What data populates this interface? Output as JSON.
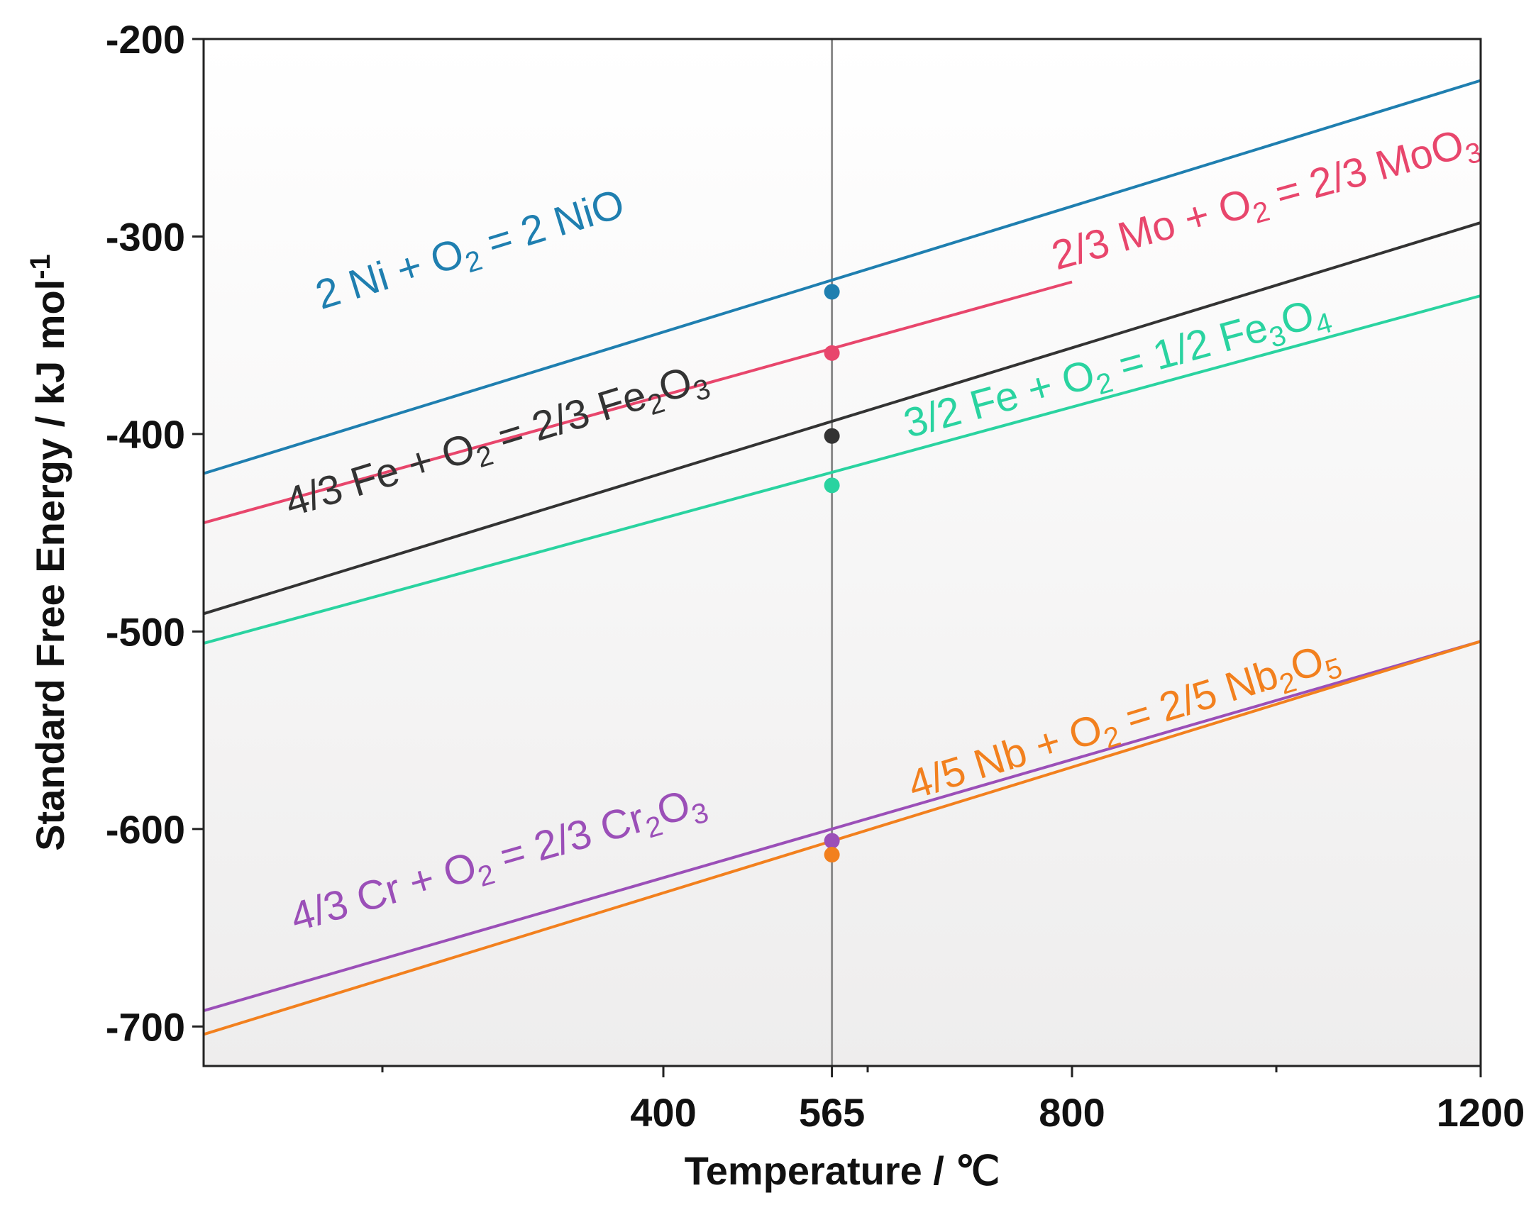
{
  "chart_data": {
    "type": "line",
    "title": "",
    "xlabel": "Temperature / ℃",
    "ylabel": "Standard Free Energy / kJ mol",
    "ylabel_superscript": "-1",
    "xlim": [
      -50,
      1200
    ],
    "ylim": [
      -720,
      -200
    ],
    "x_ticks": [
      400,
      565,
      800,
      1200
    ],
    "x_minor_ticks": [
      125,
      600,
      1000
    ],
    "y_ticks": [
      -200,
      -300,
      -400,
      -500,
      -600,
      -700
    ],
    "reference_line_x": 565,
    "series": [
      {
        "name": "2 Ni + O2 = 2 NiO",
        "color": "#1f7fb0",
        "x": [
          -50,
          1200
        ],
        "y": [
          -420,
          -221
        ],
        "marker": {
          "x": 565,
          "y": -328
        },
        "label": [
          {
            "t": "2 Ni + O"
          },
          {
            "t": "2",
            "sub": true
          },
          {
            "t": " = 2 NiO"
          }
        ],
        "label_anchor": {
          "x": 65,
          "y": -337
        }
      },
      {
        "name": "2/3 Mo + O2 = 2/3 MoO3",
        "color": "#e8466c",
        "x": [
          -50,
          800
        ],
        "y": [
          -445,
          -323
        ],
        "marker": {
          "x": 565,
          "y": -359
        },
        "label": [
          {
            "t": "2/3 Mo + O"
          },
          {
            "t": "2",
            "sub": true
          },
          {
            "t": " = 2/3 MoO"
          },
          {
            "t": "3",
            "sub": true
          }
        ],
        "label_anchor": {
          "x": 785,
          "y": -317
        }
      },
      {
        "name": "4/3 Fe + O2 = 2/3 Fe2O3",
        "color": "#333333",
        "x": [
          -50,
          1200
        ],
        "y": [
          -491,
          -293
        ],
        "marker": {
          "x": 565,
          "y": -401
        },
        "label": [
          {
            "t": "4/3 Fe + O"
          },
          {
            "t": "2",
            "sub": true
          },
          {
            "t": " = 2/3 Fe"
          },
          {
            "t": "2",
            "sub": true
          },
          {
            "t": "O"
          },
          {
            "t": "3",
            "sub": true
          }
        ],
        "label_anchor": {
          "x": 35,
          "y": -442
        }
      },
      {
        "name": "3/2 Fe + O2 = 1/2 Fe3O4",
        "color": "#2ad3a0",
        "x": [
          -50,
          1200
        ],
        "y": [
          -506,
          -330
        ],
        "marker": {
          "x": 565,
          "y": -426
        },
        "label": [
          {
            "t": "3/2 Fe + O"
          },
          {
            "t": "2",
            "sub": true
          },
          {
            "t": " = 1/2 Fe"
          },
          {
            "t": "3",
            "sub": true
          },
          {
            "t": "O"
          },
          {
            "t": "4",
            "sub": true
          }
        ],
        "label_anchor": {
          "x": 640,
          "y": -402
        }
      },
      {
        "name": "4/3 Cr + O2 = 2/3 Cr2O3",
        "color": "#9b4fb8",
        "x": [
          -50,
          1200
        ],
        "y": [
          -692,
          -505
        ],
        "marker": {
          "x": 565,
          "y": -606
        },
        "label": [
          {
            "t": "4/3 Cr + O"
          },
          {
            "t": "2",
            "sub": true
          },
          {
            "t": " = 2/3 Cr"
          },
          {
            "t": "2",
            "sub": true
          },
          {
            "t": "O"
          },
          {
            "t": "3",
            "sub": true
          }
        ],
        "label_anchor": {
          "x": 40,
          "y": -652
        }
      },
      {
        "name": "4/5 Nb + O2 = 2/5 Nb2O5",
        "color": "#f2801e",
        "x": [
          -50,
          1200
        ],
        "y": [
          -704,
          -505
        ],
        "marker": {
          "x": 565,
          "y": -613
        },
        "label": [
          {
            "t": "4/5 Nb + O"
          },
          {
            "t": "2",
            "sub": true
          },
          {
            "t": " = 2/5 Nb"
          },
          {
            "t": "2",
            "sub": true
          },
          {
            "t": "O"
          },
          {
            "t": "5",
            "sub": true
          }
        ],
        "label_anchor": {
          "x": 645,
          "y": -585
        }
      }
    ]
  }
}
